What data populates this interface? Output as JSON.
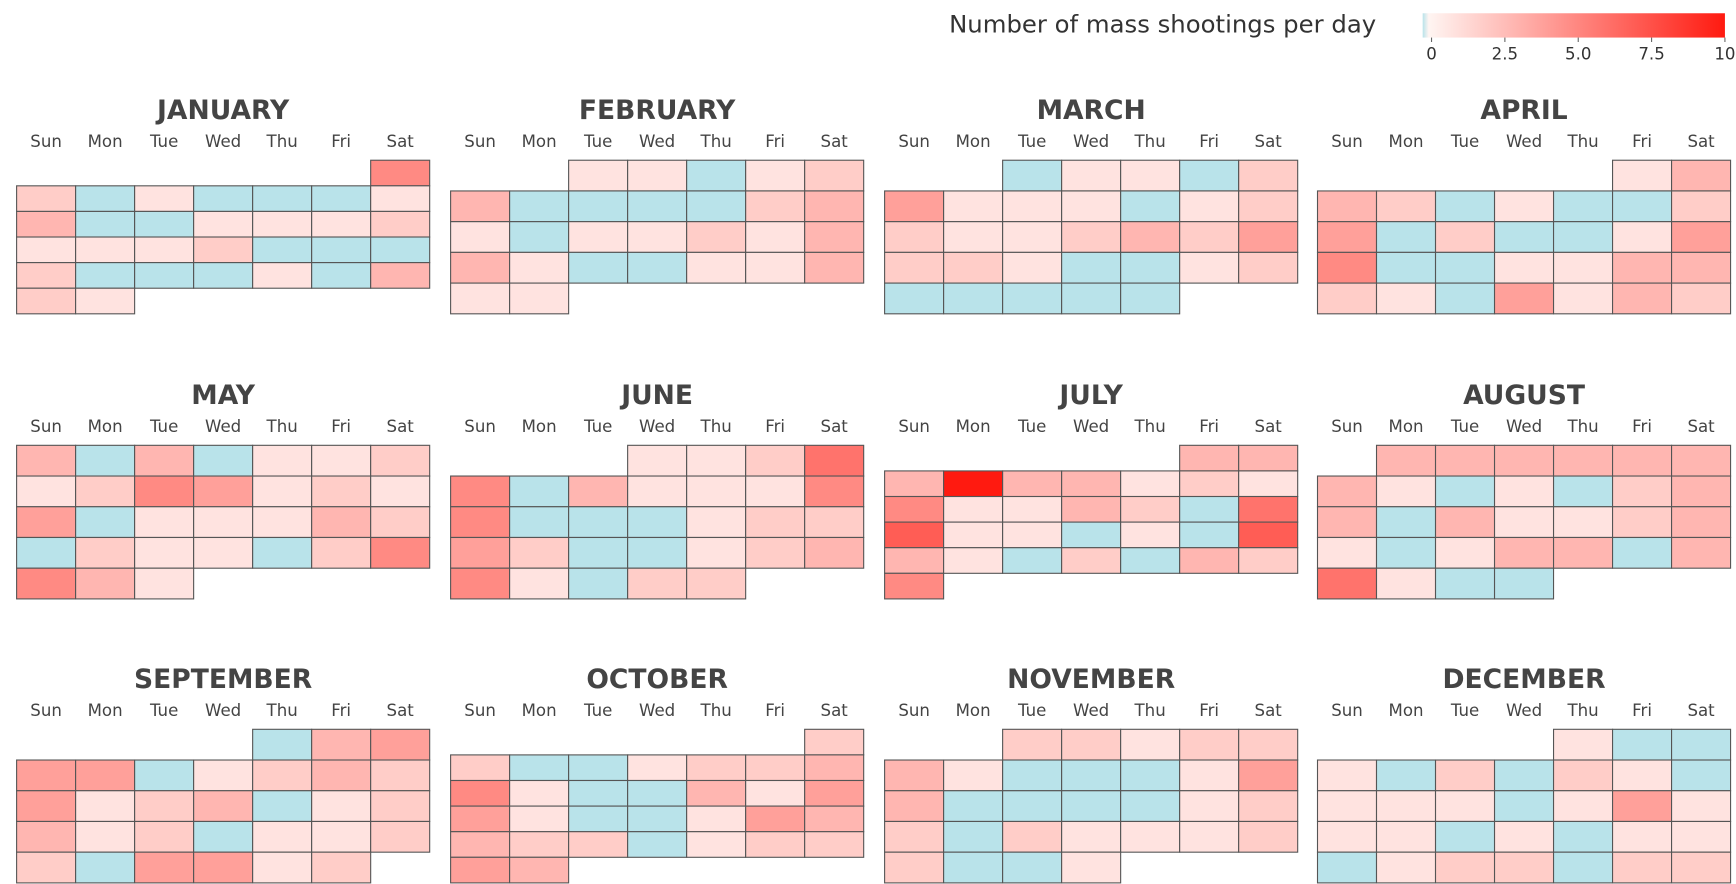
{
  "chart_data": {
    "type": "calendar-heatmap",
    "colorbar_title": "Number of mass shootings per day",
    "zlim": [
      0,
      10
    ],
    "zticks": [
      0,
      2.5,
      {
        "value": 5,
        "label": "5.0"
      },
      7.5,
      10
    ],
    "colorscale": [
      [
        0,
        "#b9e3ea"
      ],
      [
        0.02,
        "#fff5f2"
      ],
      [
        1,
        "#ff1a10"
      ]
    ],
    "weekdays": [
      "Sun",
      "Mon",
      "Tue",
      "Wed",
      "Thu",
      "Fri",
      "Sat"
    ],
    "months": [
      {
        "name": "JANUARY",
        "weeks": [
          [
            null,
            null,
            null,
            null,
            null,
            null,
            5
          ],
          [
            2,
            0,
            1,
            0,
            0,
            0,
            1
          ],
          [
            3,
            0,
            0,
            1,
            1,
            1,
            2
          ],
          [
            1,
            1,
            1,
            2,
            0,
            0,
            0
          ],
          [
            2,
            0,
            0,
            0,
            1,
            0,
            3
          ],
          [
            2,
            1,
            null,
            null,
            null,
            null,
            null
          ]
        ]
      },
      {
        "name": "FEBRUARY",
        "weeks": [
          [
            null,
            null,
            1,
            1,
            0,
            1,
            2
          ],
          [
            3,
            0,
            0,
            0,
            0,
            2,
            3
          ],
          [
            1,
            0,
            1,
            1,
            2,
            1,
            3
          ],
          [
            3,
            1,
            0,
            0,
            1,
            1,
            3
          ],
          [
            1,
            1,
            null,
            null,
            null,
            null,
            null
          ]
        ]
      },
      {
        "name": "MARCH",
        "weeks": [
          [
            null,
            null,
            0,
            1,
            1,
            0,
            2
          ],
          [
            4,
            1,
            1,
            1,
            0,
            1,
            2
          ],
          [
            2,
            1,
            1,
            2,
            3,
            2,
            4
          ],
          [
            2,
            2,
            1,
            0,
            0,
            1,
            2
          ],
          [
            0,
            0,
            0,
            0,
            0,
            null,
            null
          ]
        ]
      },
      {
        "name": "APRIL",
        "weeks": [
          [
            null,
            null,
            null,
            null,
            null,
            1,
            3
          ],
          [
            3,
            2,
            0,
            1,
            0,
            0,
            2
          ],
          [
            4,
            0,
            2,
            0,
            0,
            1,
            4
          ],
          [
            5,
            0,
            0,
            1,
            1,
            3,
            3
          ],
          [
            2,
            1,
            0,
            4,
            1,
            3,
            2
          ]
        ]
      },
      {
        "name": "MAY",
        "weeks": [
          [
            3,
            0,
            3,
            0,
            1,
            1,
            2
          ],
          [
            1,
            2,
            5,
            4,
            1,
            2,
            1
          ],
          [
            4,
            0,
            1,
            1,
            1,
            3,
            2
          ],
          [
            0,
            2,
            1,
            1,
            0,
            2,
            5
          ],
          [
            5,
            3,
            1,
            null,
            null,
            null,
            null
          ]
        ]
      },
      {
        "name": "JUNE",
        "weeks": [
          [
            null,
            null,
            null,
            1,
            1,
            2,
            6
          ],
          [
            5,
            0,
            3,
            1,
            1,
            1,
            5
          ],
          [
            5,
            0,
            0,
            0,
            1,
            2,
            2
          ],
          [
            4,
            2,
            0,
            0,
            1,
            2,
            3
          ],
          [
            5,
            1,
            0,
            2,
            2,
            null,
            null
          ]
        ]
      },
      {
        "name": "JULY",
        "weeks": [
          [
            null,
            null,
            null,
            null,
            null,
            3,
            3
          ],
          [
            3,
            10,
            3,
            3,
            1,
            2,
            1
          ],
          [
            5,
            1,
            1,
            3,
            2,
            0,
            6
          ],
          [
            7,
            1,
            1,
            0,
            1,
            0,
            7
          ],
          [
            3,
            1,
            0,
            2,
            0,
            3,
            2
          ],
          [
            5,
            null,
            null,
            null,
            null,
            null,
            null
          ]
        ]
      },
      {
        "name": "AUGUST",
        "weeks": [
          [
            null,
            3,
            3,
            3,
            3,
            3,
            3
          ],
          [
            3,
            1,
            0,
            1,
            0,
            2,
            3
          ],
          [
            3,
            0,
            3,
            1,
            1,
            2,
            3
          ],
          [
            1,
            0,
            1,
            3,
            3,
            0,
            3
          ],
          [
            6,
            1,
            0,
            0,
            null,
            null,
            null
          ]
        ]
      },
      {
        "name": "SEPTEMBER",
        "weeks": [
          [
            null,
            null,
            null,
            null,
            0,
            3,
            4
          ],
          [
            4,
            4,
            0,
            1,
            2,
            3,
            2
          ],
          [
            4,
            1,
            2,
            3,
            0,
            1,
            2
          ],
          [
            3,
            1,
            2,
            0,
            1,
            1,
            2
          ],
          [
            2,
            0,
            4,
            4,
            1,
            2,
            null
          ]
        ]
      },
      {
        "name": "OCTOBER",
        "weeks": [
          [
            null,
            null,
            null,
            null,
            null,
            null,
            2
          ],
          [
            2,
            0,
            0,
            1,
            2,
            2,
            3
          ],
          [
            5,
            1,
            0,
            0,
            3,
            1,
            4
          ],
          [
            4,
            1,
            0,
            0,
            1,
            4,
            3
          ],
          [
            3,
            2,
            2,
            0,
            1,
            2,
            2
          ],
          [
            4,
            3,
            null,
            null,
            null,
            null,
            null
          ]
        ]
      },
      {
        "name": "NOVEMBER",
        "weeks": [
          [
            null,
            null,
            2,
            2,
            1,
            2,
            2
          ],
          [
            3,
            1,
            0,
            0,
            0,
            1,
            4
          ],
          [
            3,
            0,
            0,
            0,
            0,
            1,
            2
          ],
          [
            2,
            0,
            2,
            1,
            1,
            1,
            2
          ],
          [
            2,
            0,
            0,
            1,
            null,
            null,
            null
          ]
        ]
      },
      {
        "name": "DECEMBER",
        "weeks": [
          [
            null,
            null,
            null,
            null,
            1,
            0,
            0
          ],
          [
            1,
            0,
            2,
            0,
            2,
            1,
            0
          ],
          [
            1,
            1,
            1,
            0,
            1,
            4,
            1
          ],
          [
            1,
            1,
            0,
            1,
            0,
            1,
            1
          ],
          [
            0,
            1,
            2,
            2,
            0,
            2,
            2
          ]
        ]
      }
    ]
  }
}
